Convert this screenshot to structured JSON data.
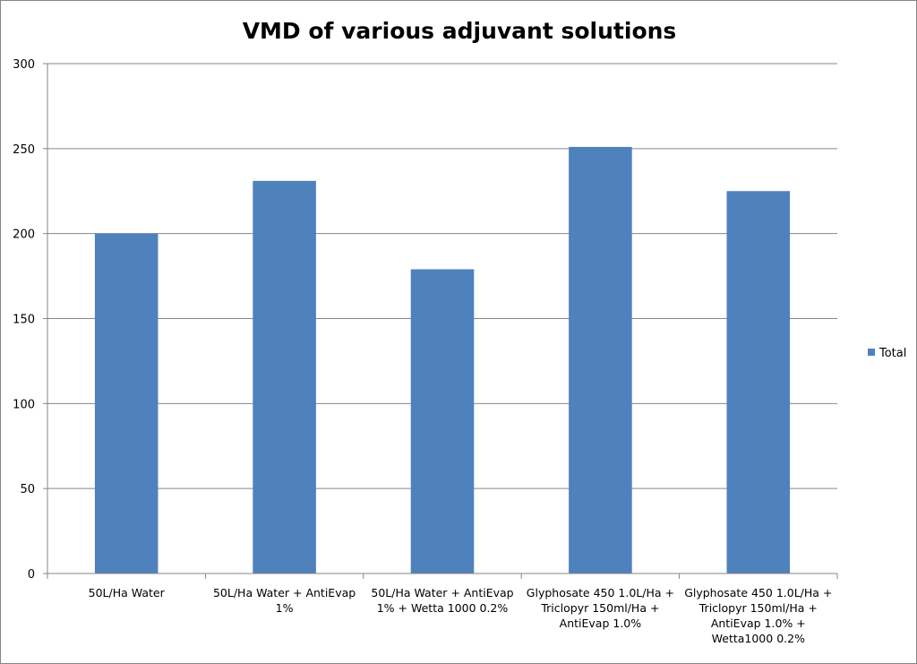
{
  "chart_data": {
    "type": "bar",
    "title": "VMD of various adjuvant solutions",
    "xlabel": "",
    "ylabel": "",
    "categories": [
      [
        "50L/Ha Water"
      ],
      [
        "50L/Ha Water + AntiEvap",
        "1%"
      ],
      [
        "50L/Ha Water + AntiEvap",
        "1% + Wetta 1000 0.2%"
      ],
      [
        "Glyphosate 450 1.0L/Ha +",
        "Triclopyr 150ml/Ha +",
        "AntiEvap 1.0%"
      ],
      [
        "Glyphosate 450 1.0L/Ha +",
        "Triclopyr 150ml/Ha +",
        "AntiEvap 1.0% +",
        "Wetta1000 0.2%"
      ]
    ],
    "series": [
      {
        "name": "Total",
        "color": "#4f81bd",
        "values": [
          200,
          231,
          179,
          251,
          225
        ]
      }
    ],
    "ylim": [
      0,
      300
    ],
    "yticks": [
      0,
      50,
      100,
      150,
      200,
      250,
      300
    ],
    "grid": true,
    "legend": "right"
  }
}
